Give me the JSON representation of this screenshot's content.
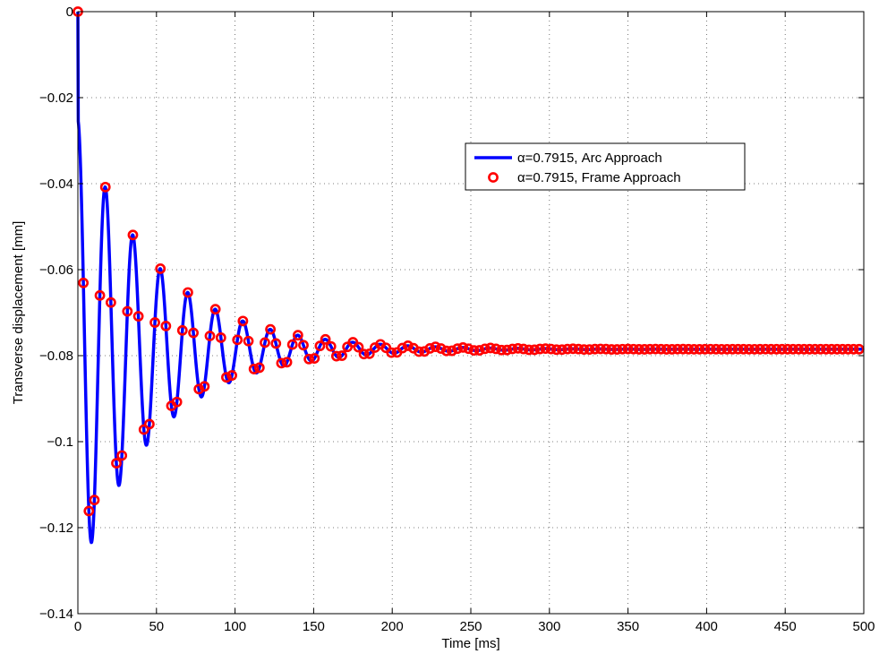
{
  "chart_data": {
    "type": "line",
    "title": "",
    "xlabel": "Time [ms]",
    "ylabel": "Transverse displacement [mm]",
    "xlim": [
      0,
      500
    ],
    "ylim": [
      -0.14,
      0
    ],
    "xticks": [
      0,
      50,
      100,
      150,
      200,
      250,
      300,
      350,
      400,
      450,
      500
    ],
    "xtick_labels": [
      "0",
      "50",
      "100",
      "150",
      "200",
      "250",
      "300",
      "350",
      "400",
      "450",
      "500"
    ],
    "yticks": [
      0,
      -0.02,
      -0.04,
      -0.06,
      -0.08,
      -0.1,
      -0.12,
      -0.14
    ],
    "ytick_labels": [
      "0",
      "−0.02",
      "−0.04",
      "−0.06",
      "−0.08",
      "−0.1",
      "−0.12",
      "−0.14"
    ],
    "grid": true,
    "legend_position": "upper-right",
    "series": [
      {
        "name": "α=0.7915, Arc Approach",
        "style": "line",
        "color": "#0000ff",
        "period_ms": 17.5,
        "equilibrium": -0.0785,
        "amplitude": 0.0535,
        "decay_tau_ms": 50,
        "x_end": 500
      },
      {
        "name": "α=0.7915, Frame Approach",
        "style": "markers",
        "color": "#ff0000",
        "period_ms": 17.5,
        "equilibrium": -0.0785,
        "amplitude": 0.0535,
        "decay_tau_ms": 50,
        "x_step_ms": 3.5,
        "x_end": 500
      }
    ]
  }
}
